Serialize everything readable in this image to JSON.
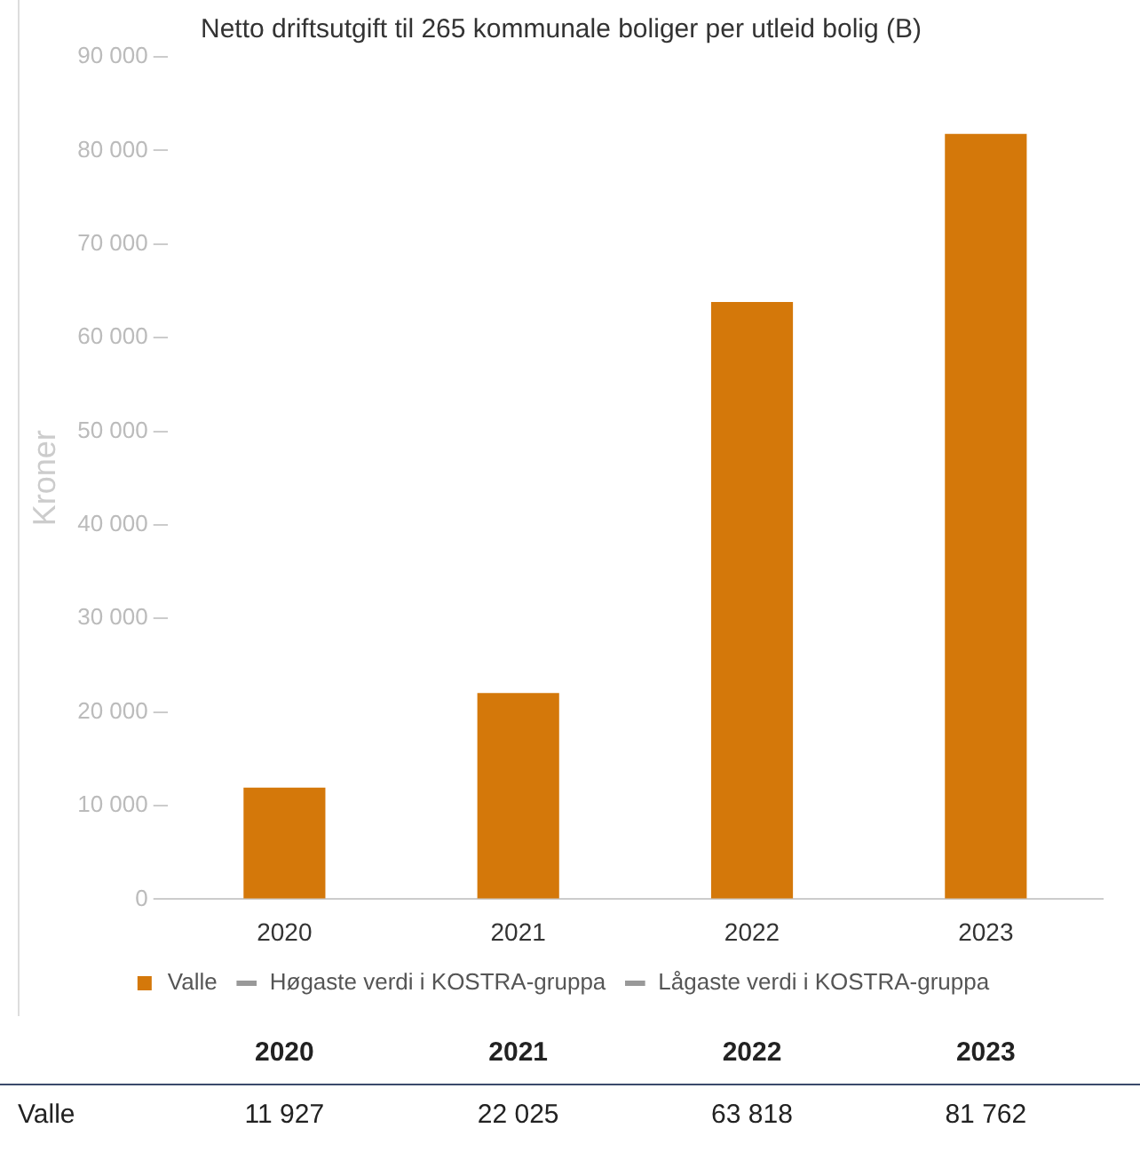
{
  "chart_data": {
    "type": "bar",
    "title": "Netto driftsutgift til 265 kommunale boliger per utleid bolig (B)",
    "ylabel": "Kroner",
    "categories": [
      "2020",
      "2021",
      "2022",
      "2023"
    ],
    "series": [
      {
        "name": "Valle",
        "color": "#d4780a",
        "values": [
          11927,
          22025,
          63818,
          81762
        ],
        "value_labels": [
          "11 927",
          "22 025",
          "63 818",
          "81 762"
        ]
      },
      {
        "name": "Høgaste verdi i KOSTRA-gruppa",
        "type": "line",
        "color": "#999999",
        "values": [
          null,
          null,
          null,
          null
        ]
      },
      {
        "name": "Lågaste verdi i KOSTRA-gruppa",
        "type": "line",
        "color": "#999999",
        "values": [
          null,
          null,
          null,
          null
        ]
      }
    ],
    "ylim": [
      0,
      90000
    ],
    "yticks": [
      0,
      10000,
      20000,
      30000,
      40000,
      50000,
      60000,
      70000,
      80000,
      90000
    ],
    "grid": false,
    "legend": "bottom"
  }
}
